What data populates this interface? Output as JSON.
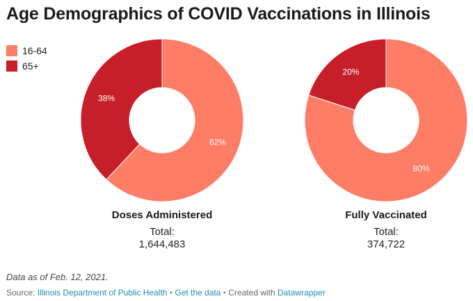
{
  "title": "Age Demographics of COVID Vaccinations in Illinois",
  "legend": [
    {
      "label": "16-64",
      "color": "#fe7d66"
    },
    {
      "label": "65+",
      "color": "#c71f2a"
    }
  ],
  "chart_data": [
    {
      "type": "pie",
      "title": "Doses Administered",
      "total_label": "Total:",
      "total": "1,644,483",
      "categories": [
        "16-64",
        "65+"
      ],
      "values": [
        62,
        38
      ],
      "value_labels": [
        "62%",
        "38%"
      ],
      "colors": [
        "#fe7d66",
        "#c71f2a"
      ]
    },
    {
      "type": "pie",
      "title": "Fully Vaccinated",
      "total_label": "Total:",
      "total": "374,722",
      "categories": [
        "16-64",
        "65+"
      ],
      "values": [
        80,
        20
      ],
      "value_labels": [
        "80%",
        "20%"
      ],
      "colors": [
        "#fe7d66",
        "#c71f2a"
      ]
    }
  ],
  "note": "Data as of Feb. 12, 2021.",
  "source": {
    "prefix": "Source:",
    "link1": "Illinois Department of Public Health",
    "sep1": "•",
    "link2": "Get the data",
    "sep2": "•",
    "created": "Created with",
    "link3": "Datawrapper"
  }
}
